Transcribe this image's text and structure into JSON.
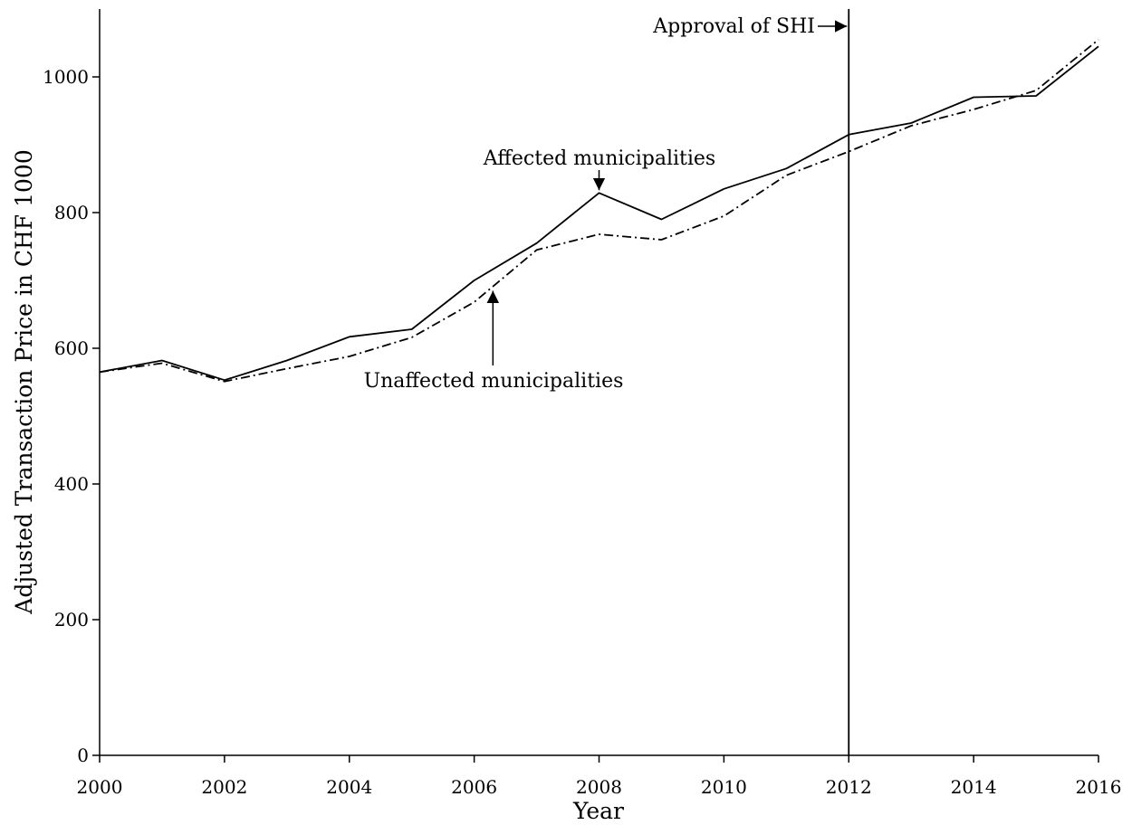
{
  "chart_data": {
    "type": "line",
    "title": "",
    "xlabel": "Year",
    "ylabel": "Adjusted Transaction Price in CHF 1000",
    "xlim": [
      2000,
      2016
    ],
    "ylim": [
      0,
      1100
    ],
    "x_ticks": [
      2000,
      2002,
      2004,
      2006,
      2008,
      2010,
      2012,
      2014,
      2016
    ],
    "y_ticks": [
      0,
      200,
      400,
      600,
      800,
      1000
    ],
    "x_tick_labels": [
      "2000",
      "2002",
      "2004",
      "2006",
      "2008",
      "2010",
      "2012",
      "2014",
      "2016"
    ],
    "y_tick_labels": [
      "0",
      "200",
      "400",
      "600",
      "800",
      "1000"
    ],
    "x": [
      2000,
      2001,
      2002,
      2003,
      2004,
      2005,
      2006,
      2007,
      2008,
      2009,
      2010,
      2011,
      2012,
      2013,
      2014,
      2015,
      2016
    ],
    "series": [
      {
        "name": "Affected municipalities",
        "line_style": "solid",
        "values": [
          565,
          582,
          553,
          582,
          617,
          628,
          700,
          755,
          829,
          790,
          835,
          865,
          915,
          932,
          970,
          972,
          1045
        ]
      },
      {
        "name": "Unaffected municipalities",
        "line_style": "dash-dot",
        "values": [
          565,
          578,
          551,
          570,
          588,
          616,
          668,
          745,
          768,
          760,
          795,
          855,
          890,
          928,
          952,
          980,
          1055
        ]
      }
    ],
    "grid": false,
    "legend": "none",
    "annotations": [
      {
        "text": "Approval of SHI",
        "type": "vertical-line",
        "x": 2012
      },
      {
        "text": "Affected municipalities",
        "type": "arrow-label",
        "x": 2008,
        "y": 829
      },
      {
        "text": "Unaffected municipalities",
        "type": "arrow-label",
        "x": 2006.3,
        "y": 690
      }
    ]
  }
}
